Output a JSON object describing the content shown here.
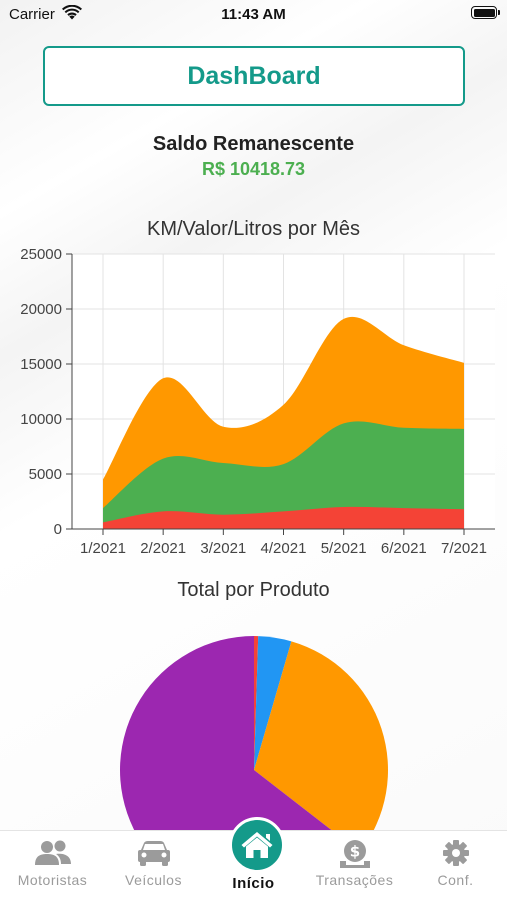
{
  "status_bar": {
    "carrier": "Carrier",
    "time": "11:43 AM"
  },
  "header": {
    "dashboard_label": "DashBoard"
  },
  "balance": {
    "label": "Saldo Remanescente",
    "value": "R$ 10418.73"
  },
  "colors": {
    "accent": "#149a8a",
    "positive": "#4caf50",
    "orange": "#ff9800",
    "green": "#4caf50",
    "red": "#f44336",
    "purple": "#9c27b0",
    "blue": "#2196f3"
  },
  "chart_data": [
    {
      "type": "area",
      "title": "KM/Valor/Litros por Mês",
      "categories": [
        "1/2021",
        "2/2021",
        "3/2021",
        "4/2021",
        "5/2021",
        "6/2021",
        "7/2021"
      ],
      "stacked": true,
      "series": [
        {
          "color": "#f44336",
          "values": [
            600,
            1600,
            1300,
            1600,
            2000,
            1900,
            1800
          ]
        },
        {
          "color": "#4caf50",
          "values": [
            1300,
            4800,
            4700,
            4300,
            7600,
            7300,
            7300
          ]
        },
        {
          "color": "#ff9800",
          "values": [
            2600,
            7300,
            3300,
            5400,
            9500,
            7500,
            6000
          ]
        }
      ],
      "yticks": [
        "0",
        "5000",
        "10000",
        "15000",
        "20000",
        "25000"
      ],
      "ylim": [
        0,
        25000
      ],
      "grid": true
    },
    {
      "type": "pie",
      "title": "Total por Produto",
      "slices": [
        {
          "color": "#f44336",
          "value": 0.5
        },
        {
          "color": "#2196f3",
          "value": 4
        },
        {
          "color": "#ff9800",
          "value": 31
        },
        {
          "color": "#9c27b0",
          "value": 64.5
        }
      ]
    }
  ],
  "tabs": [
    {
      "label": "Motoristas",
      "icon": "users-icon",
      "active": false
    },
    {
      "label": "Veículos",
      "icon": "car-icon",
      "active": false
    },
    {
      "label": "Início",
      "icon": "home-icon",
      "active": true
    },
    {
      "label": "Transações",
      "icon": "money-icon",
      "active": false
    },
    {
      "label": "Conf.",
      "icon": "gear-icon",
      "active": false
    }
  ]
}
